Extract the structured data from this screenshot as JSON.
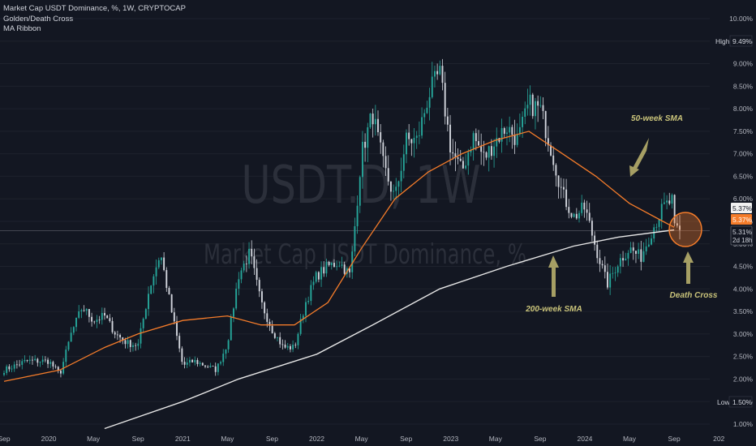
{
  "legend": {
    "title": "Market Cap USDT Dominance, %, 1W, CRYPTOCAP",
    "indicators": [
      "Golden/Death Cross",
      "MA Ribbon"
    ]
  },
  "watermark": {
    "symbol": "USDT.D, 1W",
    "description": "Market Cap USDT Dominance, %"
  },
  "colors": {
    "background": "#131722",
    "candle_up": "#26a69a",
    "candle_down": "#d1d4dc",
    "sma50": "#f57c2a",
    "sma200": "#e6e6e6",
    "annotation": "#c9c37a",
    "circle": "#f57c2a",
    "text": "#d1d4dc",
    "grid": "#1e222d"
  },
  "chart_data": {
    "type": "candlestick",
    "title": "Market Cap USDT Dominance, %, 1W, CRYPTOCAP",
    "ylabel": "%",
    "ylim": [
      1.0,
      10.0
    ],
    "y_ticks": [
      "1.00%",
      "1.50%",
      "2.00%",
      "2.50%",
      "3.00%",
      "3.50%",
      "4.00%",
      "4.50%",
      "5.00%",
      "5.50%",
      "6.00%",
      "6.50%",
      "7.00%",
      "7.50%",
      "8.00%",
      "8.50%",
      "9.00%",
      "9.50%",
      "10.00%"
    ],
    "x_ticks": [
      "Sep",
      "2020",
      "May",
      "Sep",
      "2021",
      "May",
      "Sep",
      "2022",
      "May",
      "Sep",
      "2023",
      "May",
      "Sep",
      "2024",
      "May",
      "Sep",
      "202"
    ],
    "close_points": [
      [
        "2019-09",
        2.2
      ],
      [
        "2019-11",
        2.4
      ],
      [
        "2020-01",
        2.4
      ],
      [
        "2020-02",
        2.1
      ],
      [
        "2020-03",
        3.0
      ],
      [
        "2020-04",
        3.6
      ],
      [
        "2020-05",
        3.3
      ],
      [
        "2020-06",
        3.4
      ],
      [
        "2020-07",
        3.0
      ],
      [
        "2020-08",
        2.8
      ],
      [
        "2020-09",
        2.75
      ],
      [
        "2020-10",
        4.0
      ],
      [
        "2020-11",
        4.8
      ],
      [
        "2020-12",
        3.5
      ],
      [
        "2021-01",
        2.3
      ],
      [
        "2021-02",
        2.4
      ],
      [
        "2021-04",
        2.2
      ],
      [
        "2021-05",
        2.8
      ],
      [
        "2021-06",
        4.3
      ],
      [
        "2021-07",
        4.8
      ],
      [
        "2021-08",
        3.7
      ],
      [
        "2021-09",
        3.1
      ],
      [
        "2021-10",
        2.7
      ],
      [
        "2021-11",
        2.7
      ],
      [
        "2021-12",
        3.7
      ],
      [
        "2022-01",
        4.3
      ],
      [
        "2022-02",
        4.5
      ],
      [
        "2022-03",
        4.6
      ],
      [
        "2022-04",
        4.3
      ],
      [
        "2022-05",
        7.0
      ],
      [
        "2022-06",
        7.9
      ],
      [
        "2022-07",
        6.7
      ],
      [
        "2022-08",
        6.0
      ],
      [
        "2022-09",
        7.3
      ],
      [
        "2022-10",
        7.3
      ],
      [
        "2022-11",
        8.3
      ],
      [
        "2022-12",
        8.8
      ],
      [
        "2023-01",
        7.1
      ],
      [
        "2023-02",
        6.6
      ],
      [
        "2023-03",
        7.4
      ],
      [
        "2023-04",
        6.9
      ],
      [
        "2023-05",
        7.3
      ],
      [
        "2023-06",
        7.6
      ],
      [
        "2023-07",
        7.3
      ],
      [
        "2023-08",
        8.1
      ],
      [
        "2023-09",
        8.0
      ],
      [
        "2023-10",
        7.1
      ],
      [
        "2023-11",
        6.1
      ],
      [
        "2023-12",
        5.6
      ],
      [
        "2024-01",
        5.8
      ],
      [
        "2024-02",
        4.9
      ],
      [
        "2024-03",
        4.1
      ],
      [
        "2024-04",
        4.6
      ],
      [
        "2024-05",
        4.9
      ],
      [
        "2024-06",
        4.7
      ],
      [
        "2024-07",
        5.3
      ],
      [
        "2024-08",
        5.8
      ],
      [
        "2024-09",
        6.0
      ],
      [
        "2024-09",
        5.31
      ]
    ],
    "series": [
      {
        "name": "50-week SMA",
        "points": [
          [
            "2019-09",
            1.95
          ],
          [
            "2020-02",
            2.2
          ],
          [
            "2020-06",
            2.7
          ],
          [
            "2020-09",
            3.0
          ],
          [
            "2021-01",
            3.3
          ],
          [
            "2021-05",
            3.4
          ],
          [
            "2021-08",
            3.2
          ],
          [
            "2021-11",
            3.2
          ],
          [
            "2022-02",
            3.7
          ],
          [
            "2022-05",
            4.9
          ],
          [
            "2022-08",
            6.0
          ],
          [
            "2022-11",
            6.6
          ],
          [
            "2023-02",
            7.0
          ],
          [
            "2023-05",
            7.3
          ],
          [
            "2023-08",
            7.5
          ],
          [
            "2023-11",
            7.0
          ],
          [
            "2024-02",
            6.5
          ],
          [
            "2024-05",
            5.9
          ],
          [
            "2024-08",
            5.5
          ],
          [
            "2024-09",
            5.37
          ]
        ]
      },
      {
        "name": "200-week SMA",
        "points": [
          [
            "2020-06",
            0.9
          ],
          [
            "2021-01",
            1.5
          ],
          [
            "2021-06",
            2.0
          ],
          [
            "2022-01",
            2.55
          ],
          [
            "2022-06",
            3.2
          ],
          [
            "2022-12",
            4.0
          ],
          [
            "2023-06",
            4.5
          ],
          [
            "2023-12",
            4.95
          ],
          [
            "2024-04",
            5.15
          ],
          [
            "2024-09",
            5.31
          ]
        ]
      }
    ],
    "price_labels": [
      {
        "label": "High",
        "value": "9.49%"
      },
      {
        "label": "Low",
        "value": "1.50%"
      },
      {
        "value": "5.37%"
      },
      {
        "value": "5.37%"
      },
      {
        "value": "5.31%",
        "sub": "2d 18h"
      }
    ],
    "annotations": [
      {
        "text": "50-week SMA"
      },
      {
        "text": "200-week SMA"
      },
      {
        "text": "Death Cross"
      }
    ]
  }
}
